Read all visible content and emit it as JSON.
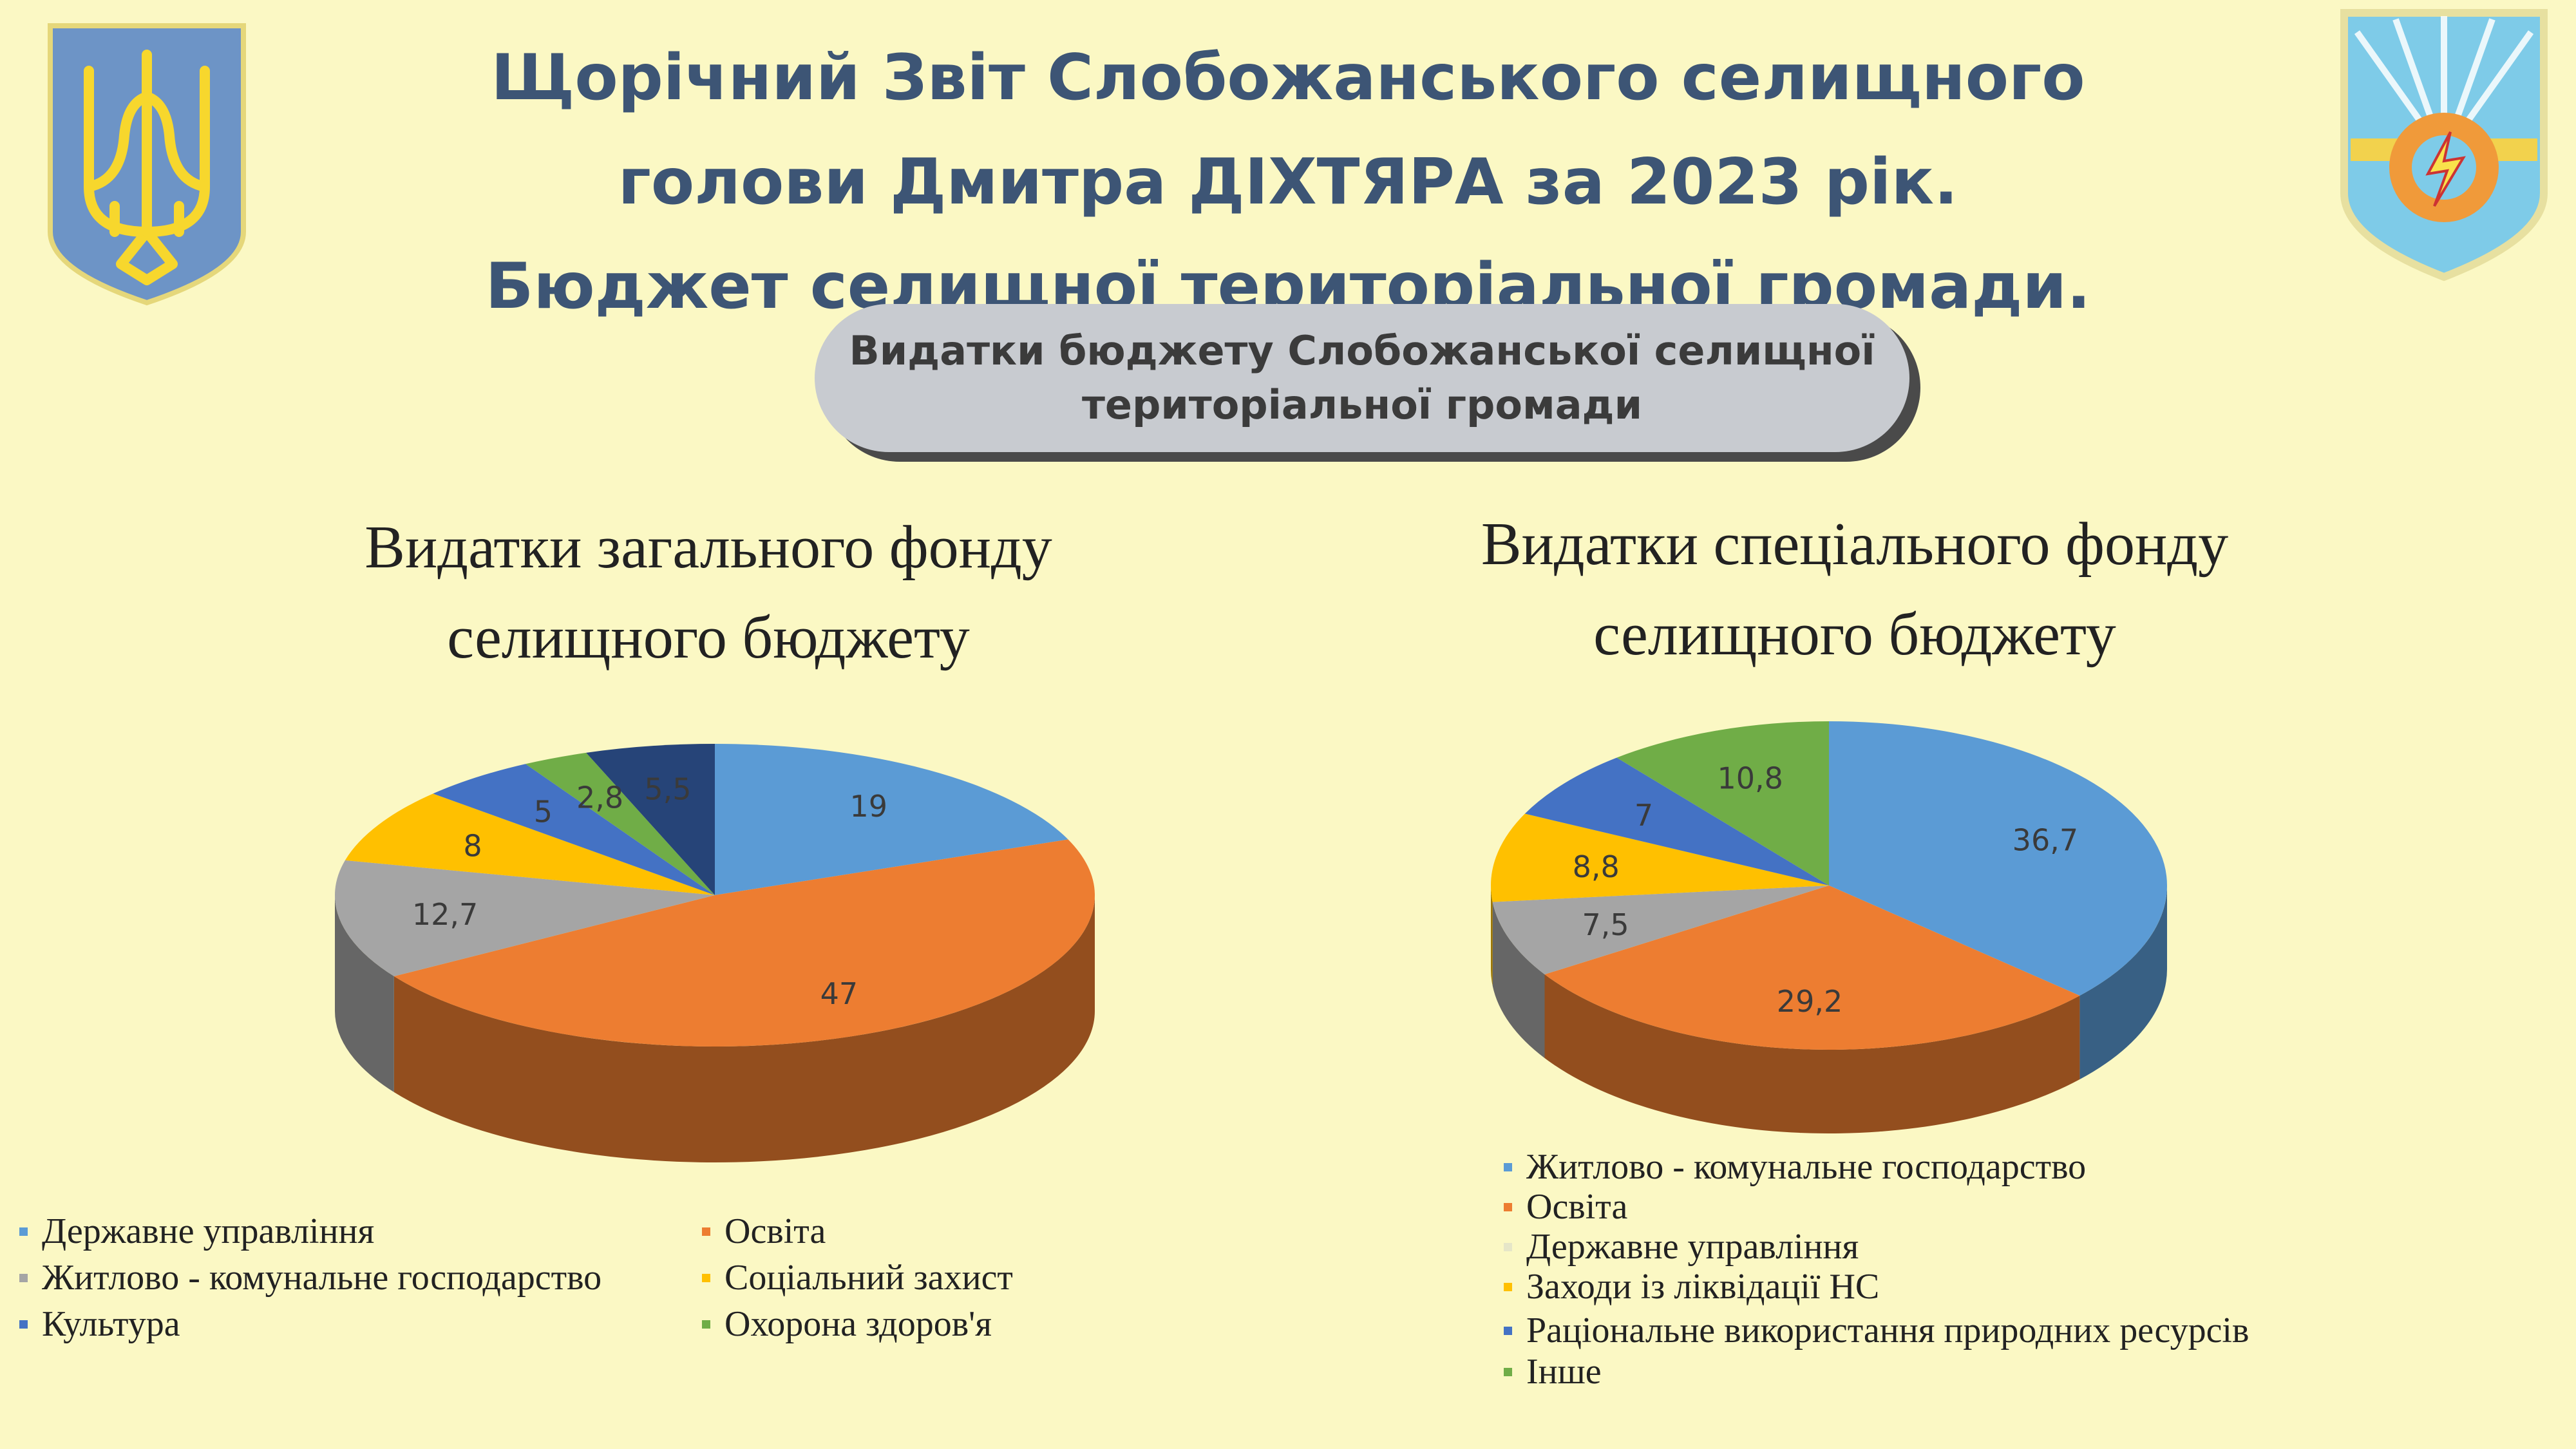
{
  "header": {
    "title_lines": [
      "Щорічний Звіт Слобожанського селищного",
      "голови Дмитра ДІХТЯРА за 2023 рік.",
      "Бюджет селищної територіальної громади."
    ],
    "subtitle_lines": [
      "Видатки бюджету Слобожанської селищної",
      "територіальної громади"
    ]
  },
  "colors": {
    "background": "#fbf8c4",
    "title": "#3d5575",
    "pill": "#c8cbd0"
  },
  "icons": [
    "trident-coat-of-arms-icon",
    "community-coat-of-arms-icon"
  ],
  "chart_data": [
    {
      "type": "pie",
      "title_lines": [
        "Видатки загального фонду",
        "селищного бюджету"
      ],
      "slices": [
        {
          "label": "Державне управління",
          "value": 19,
          "data_label": "19",
          "color": "#5b9bd5"
        },
        {
          "label": "Освіта",
          "value": 47,
          "data_label": "47",
          "color": "#ed7d31"
        },
        {
          "label": "Житлово - комунальне господарство",
          "value": 12.7,
          "data_label": "12,7",
          "color": "#a5a5a5"
        },
        {
          "label": "Соціальний захист",
          "value": 8,
          "data_label": "8",
          "color": "#ffc000"
        },
        {
          "label": "Культура",
          "value": 5,
          "data_label": "5",
          "color": "#4472c4"
        },
        {
          "label": "Охорона здоров'я",
          "value": 2.8,
          "data_label": "2,8",
          "color": "#70ad47"
        },
        {
          "label": "",
          "value": 5.5,
          "data_label": "5,5",
          "color": "#264478"
        }
      ],
      "legend": [
        {
          "label": "Державне управління",
          "color": "#5b9bd5"
        },
        {
          "label": "Освіта",
          "color": "#ed7d31"
        },
        {
          "label": "Житлово - комунальне господарство",
          "color": "#a5a5a5"
        },
        {
          "label": "Соціальний захист",
          "color": "#ffc000"
        },
        {
          "label": "Культура",
          "color": "#4472c4"
        },
        {
          "label": "Охорона здоров'я",
          "color": "#70ad47"
        }
      ],
      "legend_position": "bottom"
    },
    {
      "type": "pie",
      "title_lines": [
        "Видатки спеціального фонду",
        "селищного бюджету"
      ],
      "slices": [
        {
          "label": "Житлово - комунальне господарство",
          "value": 36.7,
          "data_label": "36,7",
          "color": "#5b9bd5"
        },
        {
          "label": "Освіта",
          "value": 29.2,
          "data_label": "29,2",
          "color": "#ed7d31"
        },
        {
          "label": "Державне управління",
          "value": 7.5,
          "data_label": "7,5",
          "color": "#a5a5a5"
        },
        {
          "label": "Заходи із ліквідації НС",
          "value": 8.8,
          "data_label": "8,8",
          "color": "#ffc000"
        },
        {
          "label": "Раціональне використання природних ресурсів",
          "value": 7,
          "data_label": "7",
          "color": "#4472c4"
        },
        {
          "label": "Інше",
          "value": 10.8,
          "data_label": "10,8",
          "color": "#70ad47"
        }
      ],
      "legend": [
        {
          "label": "Житлово - комунальне господарство",
          "color": "#5b9bd5"
        },
        {
          "label": "Освіта",
          "color": "#ed7d31"
        },
        {
          "label": "Державне управління",
          "color": "#e6e6c8"
        },
        {
          "label": "Заходи із ліквідації НС",
          "color": "#ffc000"
        },
        {
          "label": "Раціональне використання природних ресурсів",
          "color": "#4472c4"
        },
        {
          "label": "Інше",
          "color": "#70ad47"
        }
      ],
      "legend_position": "bottom"
    }
  ]
}
